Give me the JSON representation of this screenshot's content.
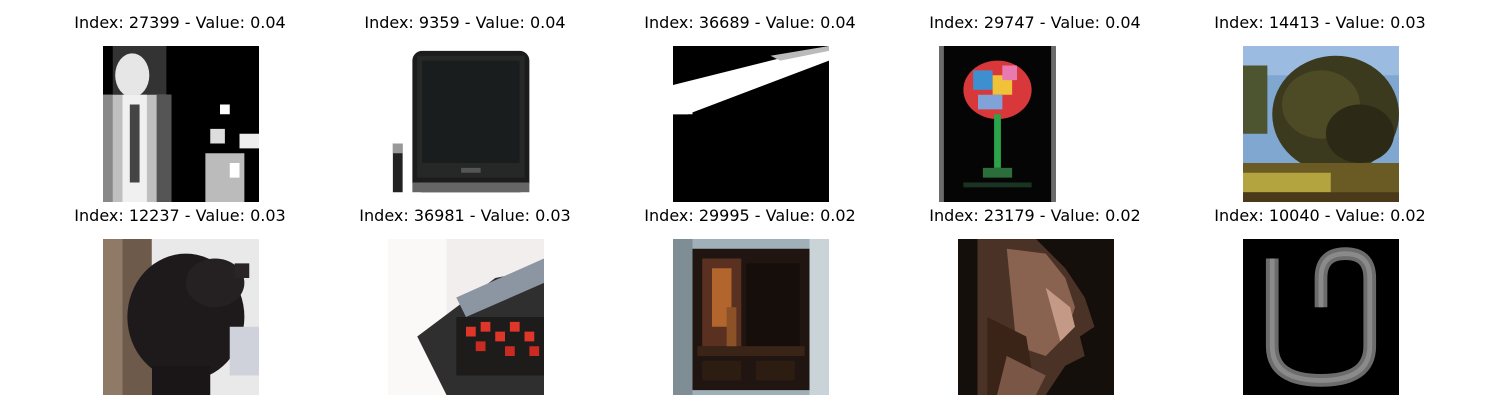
{
  "panels": [
    {
      "title": "Index: 27399 - Value: 0.04",
      "scene": "man-in-suit-bw"
    },
    {
      "title": "Index: 9359 - Value: 0.04",
      "scene": "black-television"
    },
    {
      "title": "Index: 36689 - Value: 0.04",
      "scene": "white-streak-on-black"
    },
    {
      "title": "Index: 29747 - Value: 0.04",
      "scene": "cocktail-glass"
    },
    {
      "title": "Index: 14413 - Value: 0.03",
      "scene": "tree-in-park"
    },
    {
      "title": "Index: 12237 - Value: 0.03",
      "scene": "black-bear-cub"
    },
    {
      "title": "Index: 36981 - Value: 0.03",
      "scene": "alarm-clock"
    },
    {
      "title": "Index: 29995 - Value: 0.02",
      "scene": "wardrobe"
    },
    {
      "title": "Index: 23179 - Value: 0.02",
      "scene": "woman-profile"
    },
    {
      "title": "Index: 10040 - Value: 0.02",
      "scene": "gray-u-shape"
    }
  ]
}
